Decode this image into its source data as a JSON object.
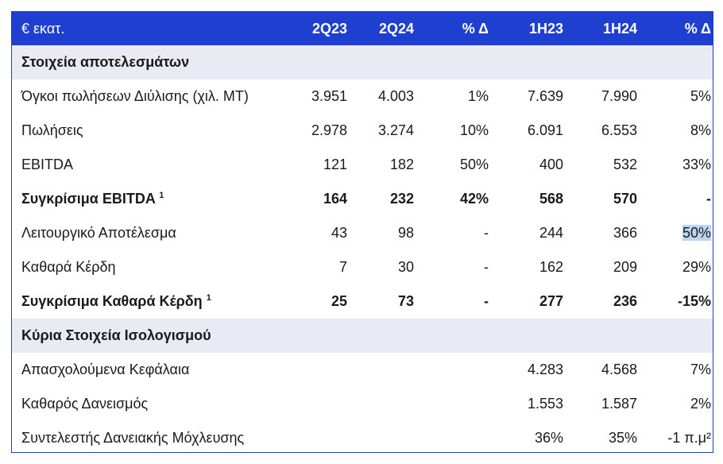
{
  "header": {
    "label": "€ εκατ.",
    "cols": [
      "2Q23",
      "2Q24",
      "% Δ",
      "1H23",
      "1H24",
      "% Δ"
    ]
  },
  "section1": {
    "title": "Στοιχεία αποτελεσμάτων",
    "rows": [
      {
        "label": "Όγκοι πωλήσεων Διύλισης (χιλ. ΜΤ)",
        "sup": "",
        "bold": false,
        "values": [
          "3.951",
          "4.003",
          "1%",
          "7.639",
          "7.990",
          "5%"
        ]
      },
      {
        "label": "Πωλήσεις",
        "sup": "",
        "bold": false,
        "values": [
          "2.978",
          "3.274",
          "10%",
          "6.091",
          "6.553",
          "8%"
        ]
      },
      {
        "label": "EBITDA",
        "sup": "",
        "bold": false,
        "values": [
          "121",
          "182",
          "50%",
          "400",
          "532",
          "33%"
        ]
      },
      {
        "label": "Συγκρίσιμα EBITDA",
        "sup": "1",
        "bold": true,
        "values": [
          "164",
          "232",
          "42%",
          "568",
          "570",
          "-"
        ]
      },
      {
        "label": "Λειτουργικό Αποτέλεσμα",
        "sup": "",
        "bold": false,
        "values": [
          "43",
          "98",
          "-",
          "244",
          "366",
          "50%"
        ]
      },
      {
        "label": "Καθαρά Κέρδη",
        "sup": "",
        "bold": false,
        "values": [
          "7",
          "30",
          "-",
          "162",
          "209",
          "29%"
        ]
      },
      {
        "label": "Συγκρίσιμα Καθαρά Κέρδη",
        "sup": "1",
        "bold": true,
        "values": [
          "25",
          "73",
          "-",
          "277",
          "236",
          "-15%"
        ]
      }
    ]
  },
  "section2": {
    "title": "Κύρια Στοιχεία Ισολογισμού",
    "rows": [
      {
        "label": "Απασχολούμενα Κεφάλαια",
        "values": [
          "",
          "",
          "",
          "4.283",
          "4.568",
          "7%"
        ]
      },
      {
        "label": "Καθαρός Δανεισμός",
        "values": [
          "",
          "",
          "",
          "1.553",
          "1.587",
          "2%"
        ]
      },
      {
        "label": "Συντελεστής Δανειακής Μόχλευσης",
        "values": [
          "",
          "",
          "",
          "36%",
          "35%",
          "-1 π.μ²"
        ]
      }
    ]
  }
}
